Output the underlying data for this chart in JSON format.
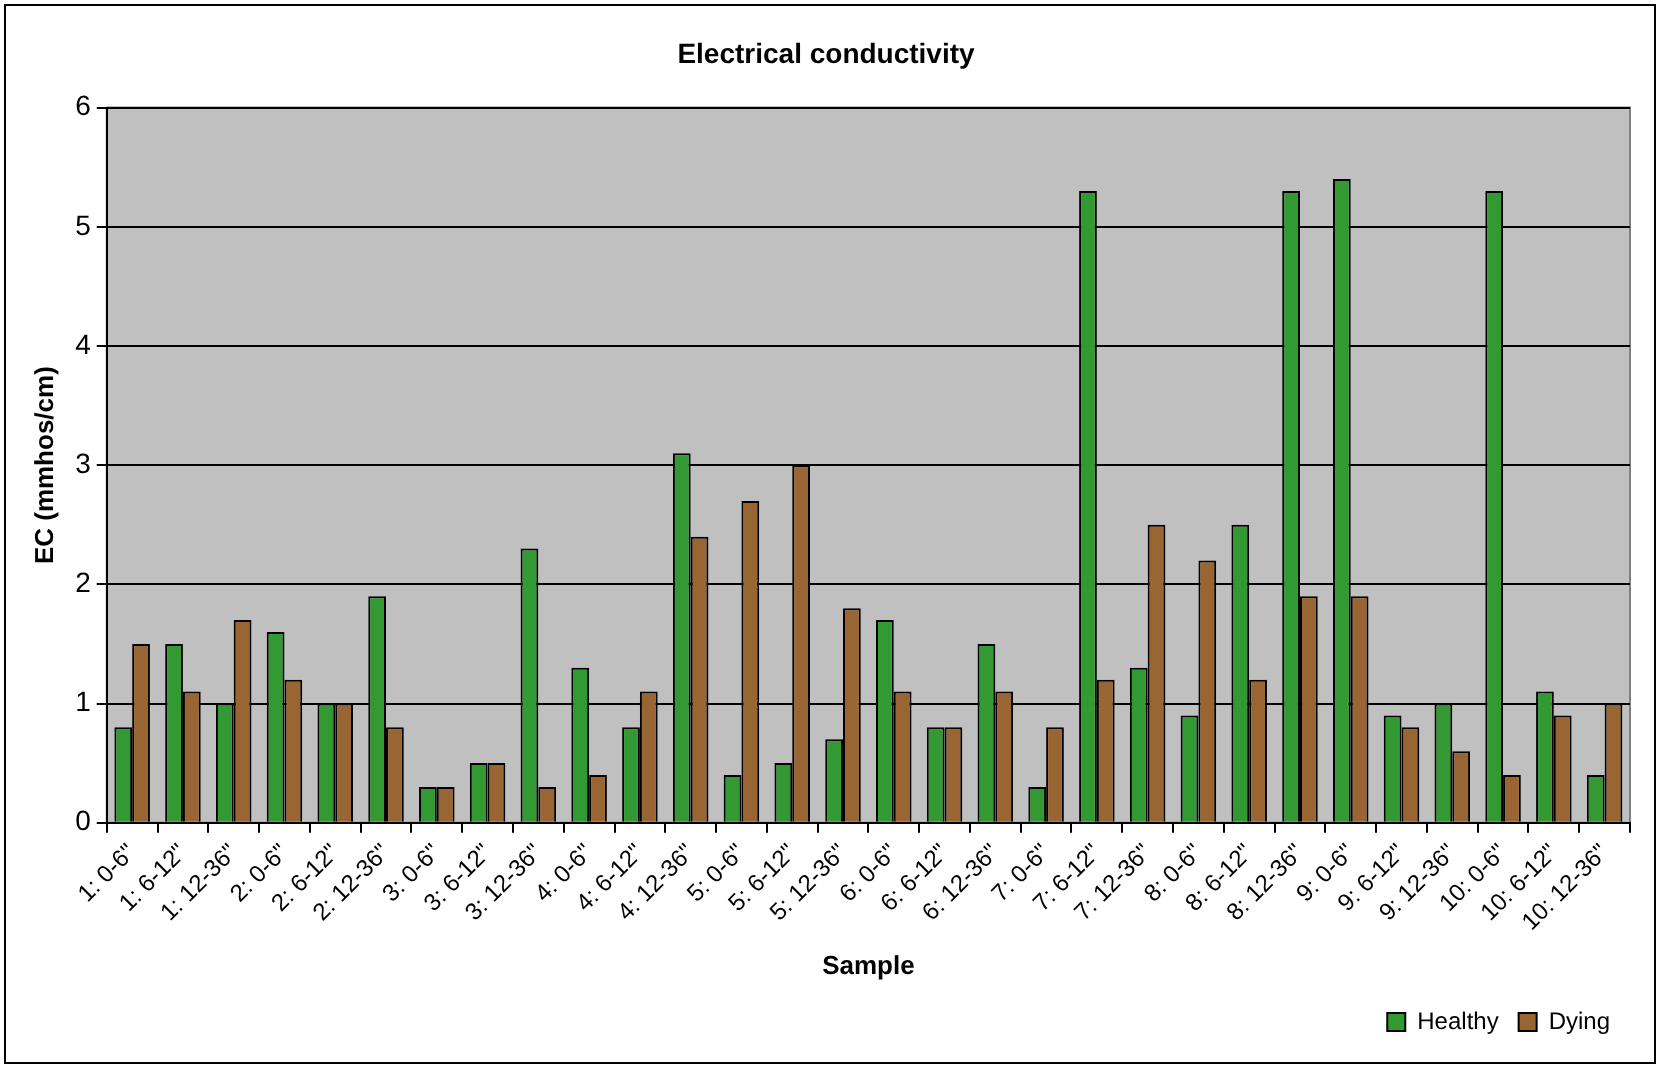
{
  "chart_data": {
    "type": "bar",
    "title": "Electrical conductivity",
    "xlabel": "Sample",
    "ylabel": "EC (mmhos/cm)",
    "categories": [
      "1: 0-6\"",
      "1: 6-12\"",
      "1: 12-36\"",
      "2: 0-6\"",
      "2: 6-12\"",
      "2: 12-36\"",
      "3: 0-6\"",
      "3: 6-12\"",
      "3: 12-36\"",
      "4: 0-6\"",
      "4: 6-12\"",
      "4: 12-36\"",
      "5: 0-6\"",
      "5: 6-12\"",
      "5: 12-36\"",
      "6: 0-6\"",
      "6: 6-12\"",
      "6: 12-36\"",
      "7: 0-6\"",
      "7: 6-12\"",
      "7: 12-36\"",
      "8: 0-6\"",
      "8: 6-12\"",
      "8: 12-36\"",
      "9: 0-6\"",
      "9: 6-12\"",
      "9: 12-36\"",
      "10: 0-6\"",
      "10: 6-12\"",
      "10: 12-36\""
    ],
    "series": [
      {
        "name": "Healthy",
        "color": "#339933",
        "values": [
          0.8,
          1.5,
          1.0,
          1.6,
          1.0,
          1.9,
          0.3,
          0.5,
          2.3,
          1.3,
          0.8,
          3.1,
          0.4,
          0.5,
          0.7,
          1.7,
          0.8,
          1.5,
          0.3,
          5.3,
          1.3,
          0.9,
          2.5,
          5.3,
          5.4,
          0.9,
          1.0,
          5.3,
          1.1,
          0.4
        ]
      },
      {
        "name": "Dying",
        "color": "#996633",
        "values": [
          1.5,
          1.1,
          1.7,
          1.2,
          1.0,
          0.8,
          0.3,
          0.5,
          0.3,
          0.4,
          1.1,
          2.4,
          2.7,
          3.0,
          1.8,
          1.1,
          0.8,
          1.1,
          0.8,
          1.2,
          2.5,
          2.2,
          1.2,
          1.9,
          1.9,
          0.8,
          0.6,
          0.4,
          0.9,
          1.0
        ]
      }
    ],
    "ylim": [
      0,
      6
    ],
    "yticks": [
      0,
      1,
      2,
      3,
      4,
      5,
      6
    ],
    "grid": "y",
    "legend": "bottom right"
  }
}
